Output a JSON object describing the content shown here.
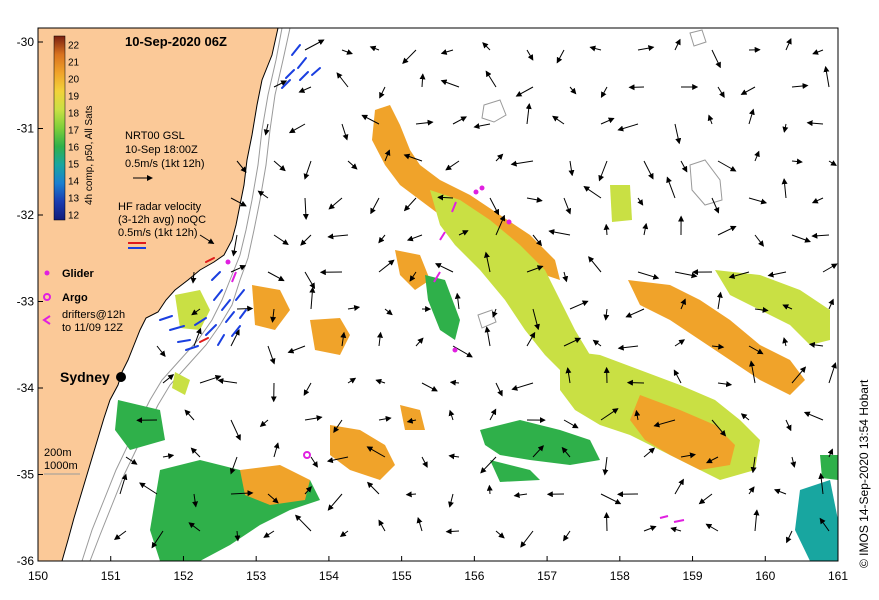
{
  "map": {
    "title": "10-Sep-2020 06Z",
    "credit": "© IMOS 14-Sep-2020 13:54 Hobart",
    "lon_range": [
      150,
      161
    ],
    "lat_range": [
      -36,
      -29.75
    ],
    "x_ticks": [
      "150",
      "151",
      "152",
      "153",
      "154",
      "155",
      "156",
      "157",
      "158",
      "159",
      "160",
      "161"
    ],
    "y_ticks": [
      "-30",
      "-31",
      "-32",
      "-33",
      "-34",
      "-35",
      "-36"
    ],
    "colorbar": {
      "label": "4h comp, p50, All Sats",
      "ticks": [
        "22",
        "21",
        "20",
        "19",
        "18",
        "17",
        "16",
        "15",
        "14",
        "13",
        "12"
      ],
      "colors": [
        "#7a1f10",
        "#b5401d",
        "#d9721f",
        "#f0a32a",
        "#f2d23a",
        "#c9e044",
        "#7fcf3a",
        "#2fb04a",
        "#18a6a0",
        "#1a7fd0",
        "#1a3bb0",
        "#121c7a"
      ]
    },
    "gsl_legend": {
      "line1": "NRT00 GSL",
      "line2": "10-Sep 18:00Z",
      "line3": "0.5m/s (1kt 12h)"
    },
    "hf_legend": {
      "line1": "HF radar velocity",
      "line2": "(3-12h avg) noQC",
      "line3": "0.5m/s (1kt 12h)"
    },
    "glider_label": "Glider",
    "argo_label": "Argo",
    "drifters_line1": "drifters@12h",
    "drifters_line2": "to 11/09 12Z",
    "city": "Sydney",
    "depth_200": "200m",
    "depth_1000": "1000m",
    "colors": {
      "land": "#fbc998",
      "coast": "#000000",
      "isobath": "#9a9a9a",
      "arrow": "#000000",
      "hf_blue": "#1a3fe0",
      "hf_red": "#e01a1a",
      "magenta": "#e020e0"
    }
  }
}
